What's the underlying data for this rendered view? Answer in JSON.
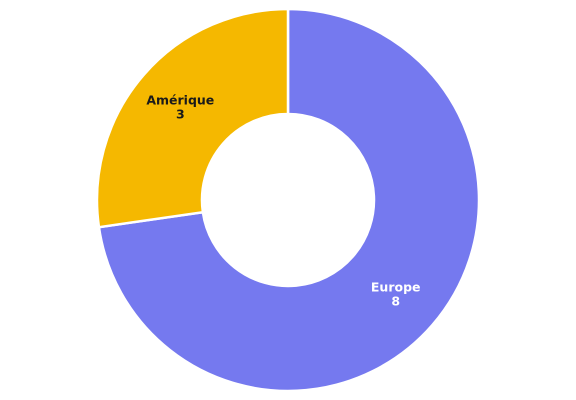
{
  "chart_data": {
    "type": "pie",
    "variant": "donut",
    "title": "",
    "categories": [
      "Europe",
      "Amérique"
    ],
    "values": [
      8,
      3
    ],
    "colors": [
      "#7579ef",
      "#f5b800"
    ],
    "label_colors": [
      "#ffffff",
      "#1a1a1a"
    ],
    "show_category_labels": true,
    "show_value_labels": true,
    "legend": "none"
  }
}
